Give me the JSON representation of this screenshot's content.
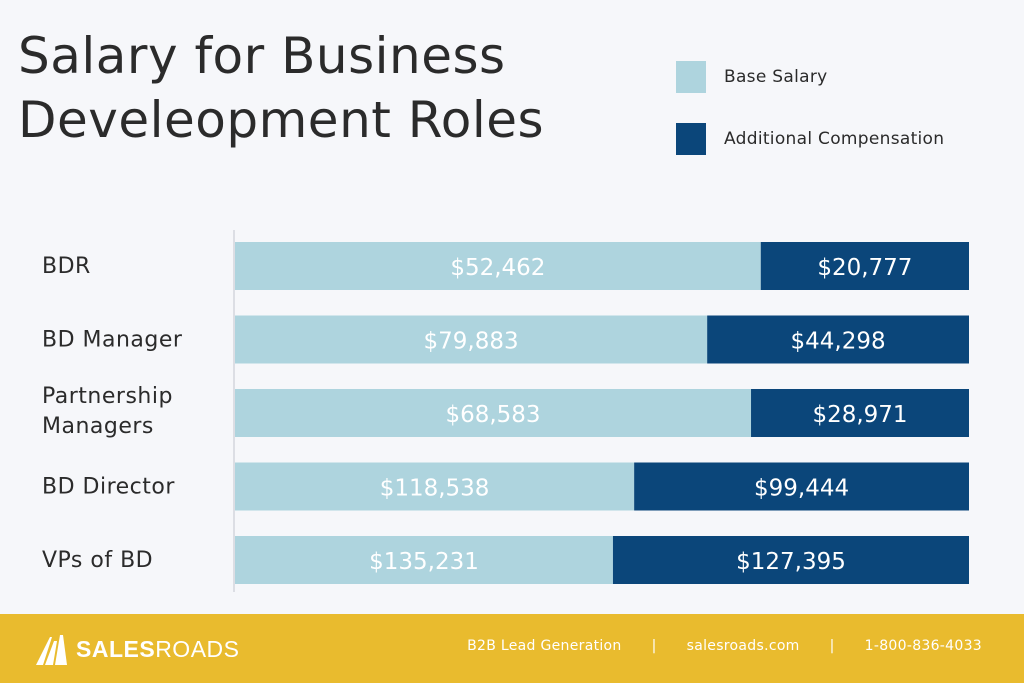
{
  "title": "Salary for Business Develeopment Roles",
  "legend": {
    "items": [
      {
        "label": "Base Salary",
        "color": "#aed4de"
      },
      {
        "label": "Additional Compensation",
        "color": "#0b467a"
      }
    ]
  },
  "chart_data": {
    "type": "bar",
    "orientation": "horizontal",
    "stacked": true,
    "categories": [
      "BDR",
      "BD Manager",
      "Partnership Managers",
      "BD Director",
      "VPs of BD"
    ],
    "series": [
      {
        "name": "Base Salary",
        "color": "#aed4de",
        "values": [
          52462,
          79883,
          68583,
          118538,
          135231
        ],
        "labels": [
          "$52,462",
          "$79,883",
          "$68,583",
          "$118,538",
          "$135,231"
        ]
      },
      {
        "name": "Additional Compensation",
        "color": "#0b467a",
        "values": [
          20777,
          44298,
          28971,
          99444,
          127395
        ],
        "labels": [
          "$20,777",
          "$44,298",
          "$28,971",
          "$99,444",
          "$127,395"
        ]
      }
    ],
    "bars_normalized_to_full_width": true,
    "grid": false,
    "legend_position": "top-right"
  },
  "footer": {
    "logo": {
      "bold": "SALES",
      "regular": "ROADS",
      "icon": "road-logo-icon"
    },
    "tagline": "B2B Lead Generation",
    "separator": "|",
    "website": "salesroads.com",
    "phone": "1-800-836-4033"
  }
}
